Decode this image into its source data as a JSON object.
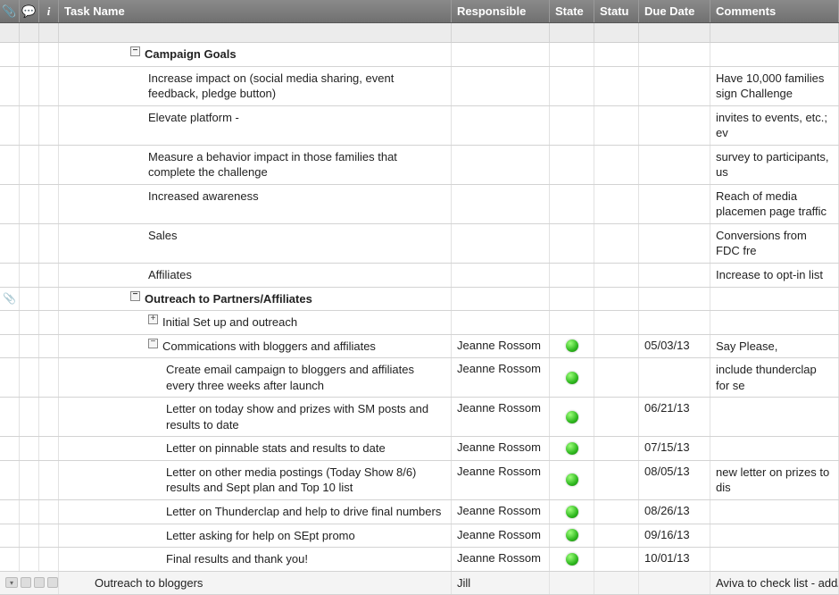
{
  "columns": {
    "attach_icon": "📎",
    "comment_icon": "💬",
    "info_icon": "i",
    "task": "Task Name",
    "responsible": "Responsible",
    "state": "State",
    "statu": "Statu",
    "due": "Due Date",
    "comments": "Comments"
  },
  "rows": [
    {
      "type": "section",
      "indent": 1,
      "toggle": "-",
      "task": "Campaign Goals"
    },
    {
      "type": "item",
      "indent": 2,
      "task": "Increase impact on (social media sharing, event feedback, pledge button)",
      "comments": "Have 10,000 families sign Challenge"
    },
    {
      "type": "item",
      "indent": 2,
      "task": "Elevate platform -",
      "comments": "invites to events, etc.; ev"
    },
    {
      "type": "item",
      "indent": 2,
      "task": "Measure a behavior impact in those families that complete the challenge",
      "comments": "survey to participants, us"
    },
    {
      "type": "item",
      "indent": 2,
      "task": "Increased awareness",
      "comments": "Reach of media placemen page traffic"
    },
    {
      "type": "item",
      "indent": 2,
      "task": "Sales",
      "comments": "Conversions from FDC fre"
    },
    {
      "type": "item",
      "indent": 2,
      "task": "Affiliates",
      "comments": "Increase to opt-in list"
    },
    {
      "type": "section",
      "indent": 1,
      "toggle": "-",
      "attach": true,
      "task": "Outreach to Partners/Affiliates"
    },
    {
      "type": "sub",
      "indent": 2,
      "toggle": "+",
      "task": "Initial Set up and outreach"
    },
    {
      "type": "sub",
      "indent": 2,
      "toggle": "-",
      "task": "Commications with bloggers and affiliates",
      "responsible": "Jeanne Rossom",
      "state": "green",
      "due": "05/03/13",
      "comments": "Say Please,"
    },
    {
      "type": "item",
      "indent": 3,
      "task": "Create email campaign to bloggers and affiliates every three weeks after launch",
      "responsible": "Jeanne Rossom",
      "state": "green",
      "comments": "include thunderclap for se"
    },
    {
      "type": "item",
      "indent": 3,
      "task": "Letter on today show and prizes with SM posts and results to date",
      "responsible": "Jeanne Rossom",
      "state": "green",
      "due": "06/21/13"
    },
    {
      "type": "item",
      "indent": 3,
      "task": "Letter on pinnable stats and results to date",
      "responsible": "Jeanne Rossom",
      "state": "green",
      "due": "07/15/13"
    },
    {
      "type": "item",
      "indent": 3,
      "task": "Letter on other media postings (Today Show 8/6) results and Sept plan and Top 10 list",
      "responsible": "Jeanne Rossom",
      "state": "green",
      "due": "08/05/13",
      "comments": "new letter on prizes to dis"
    },
    {
      "type": "item",
      "indent": 3,
      "task": "Letter on Thunderclap and help to drive final numbers",
      "responsible": "Jeanne Rossom",
      "state": "green",
      "due": "08/26/13"
    },
    {
      "type": "item",
      "indent": 3,
      "task": "Letter asking for help on SEpt promo",
      "responsible": "Jeanne Rossom",
      "state": "green",
      "due": "09/16/13"
    },
    {
      "type": "item",
      "indent": 3,
      "task": "Final results and thank you!",
      "responsible": "Jeanne Rossom",
      "state": "green",
      "due": "10/01/13"
    }
  ],
  "last_row": {
    "task": "Outreach to bloggers",
    "responsible": "Jill",
    "comments": "Aviva to check list - add/e"
  },
  "colors": {
    "header_bg_top": "#8a8a8a",
    "header_bg_bot": "#707070",
    "border": "#d3d3d3",
    "green": "#2fb81f"
  }
}
